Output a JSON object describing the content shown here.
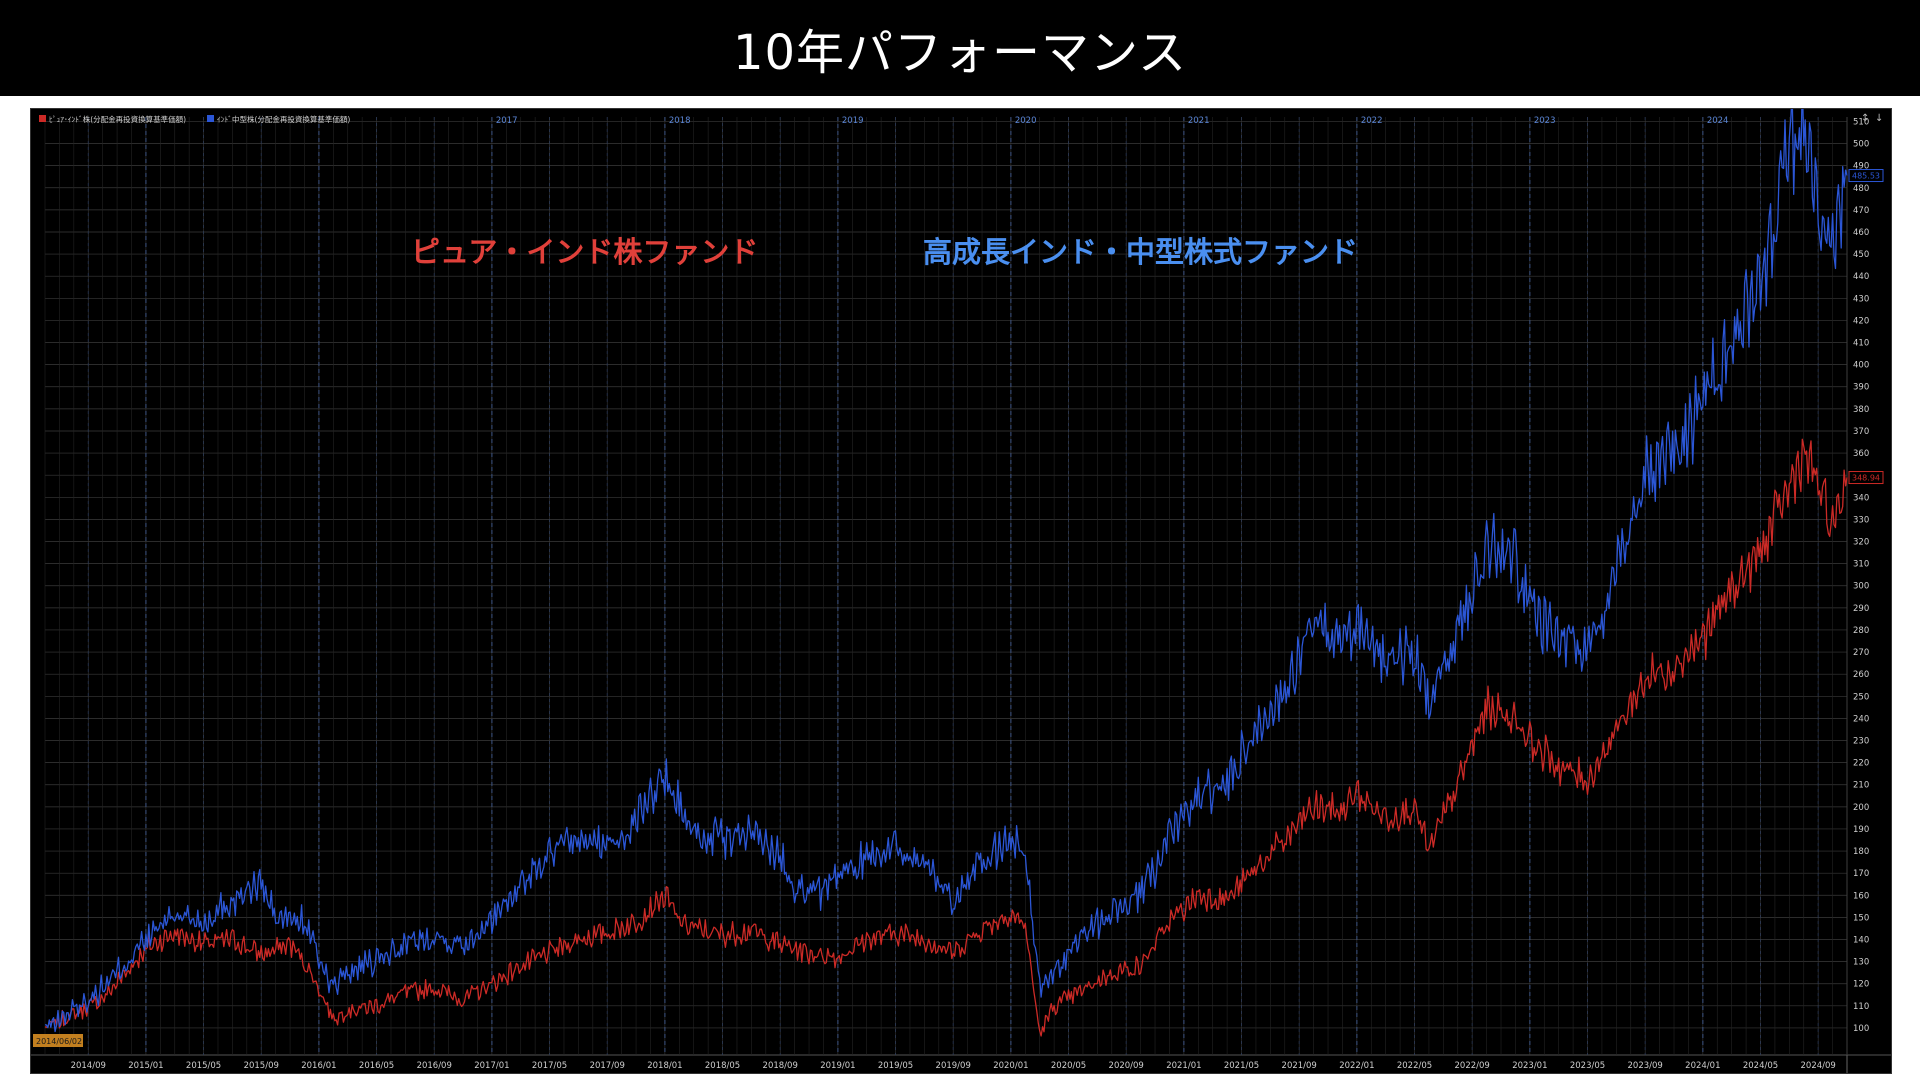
{
  "page": {
    "title": "10年パフォーマンス"
  },
  "colors": {
    "red": "#cc2a26",
    "blue": "#2b56d6",
    "red_label": "#e0403a",
    "blue_label": "#4a8ff0",
    "grid": "#3a3a3a",
    "vline": "#3a4f7a"
  },
  "legend": [
    {
      "label": "ﾋﾟｭｱ･ｲﾝﾄﾞ株(分配金再投資換算基準価額)",
      "color": "#cc2a26"
    },
    {
      "label": "ｲﾝﾄﾞ中型株(分配金再投資換算基準価額)",
      "color": "#2b56d6"
    }
  ],
  "annotations": {
    "red": "ピュア・インド株ファンド",
    "blue": "高成長インド・中型株式ファンド",
    "start_date": "2014/06/02",
    "red_last": "348.94",
    "blue_last": "485.53"
  },
  "chart_data": {
    "type": "line",
    "title": "10年パフォーマンス",
    "xlabel": "",
    "ylabel": "",
    "xlim": [
      "2014-06",
      "2024-11"
    ],
    "ylim": [
      95,
      512
    ],
    "grid": true,
    "legend_position": "top-left",
    "y_ticks": [
      100,
      110,
      120,
      130,
      140,
      150,
      160,
      170,
      180,
      190,
      200,
      210,
      220,
      230,
      240,
      250,
      260,
      270,
      280,
      290,
      300,
      310,
      320,
      330,
      340,
      350,
      360,
      370,
      380,
      390,
      400,
      410,
      420,
      430,
      440,
      450,
      460,
      470,
      480,
      490,
      500,
      510
    ],
    "x_tick_labels": [
      "2014/09",
      "2015/01",
      "2015/05",
      "2015/09",
      "2016/01",
      "2016/05",
      "2016/09",
      "2017/01",
      "2017/05",
      "2017/09",
      "2018/01",
      "2018/05",
      "2018/09",
      "2019/01",
      "2019/05",
      "2019/09",
      "2020/01",
      "2020/05",
      "2020/09",
      "2021/01",
      "2021/05",
      "2021/09",
      "2022/01",
      "2022/05",
      "2022/09",
      "2023/01",
      "2023/05",
      "2023/09",
      "2024/01",
      "2024/05",
      "2024/09"
    ],
    "year_labels": [
      "2017",
      "2018",
      "2019",
      "2020",
      "2021",
      "2022",
      "2023",
      "2024"
    ],
    "series": [
      {
        "name": "ﾋﾟｭｱ･ｲﾝﾄﾞ株(分配金再投資換算基準価額)",
        "color": "#cc2a26",
        "points": [
          [
            "2014-06",
            100
          ],
          [
            "2014-08",
            106
          ],
          [
            "2014-10",
            113
          ],
          [
            "2014-12",
            128
          ],
          [
            "2015-01",
            136
          ],
          [
            "2015-03",
            143
          ],
          [
            "2015-05",
            138
          ],
          [
            "2015-07",
            140
          ],
          [
            "2015-09",
            133
          ],
          [
            "2015-11",
            138
          ],
          [
            "2015-12",
            130
          ],
          [
            "2016-01",
            118
          ],
          [
            "2016-02",
            104
          ],
          [
            "2016-03",
            108
          ],
          [
            "2016-05",
            110
          ],
          [
            "2016-07",
            116
          ],
          [
            "2016-09",
            118
          ],
          [
            "2016-11",
            113
          ],
          [
            "2017-01",
            120
          ],
          [
            "2017-03",
            128
          ],
          [
            "2017-05",
            134
          ],
          [
            "2017-07",
            140
          ],
          [
            "2017-09",
            143
          ],
          [
            "2017-11",
            148
          ],
          [
            "2018-01",
            160
          ],
          [
            "2018-02",
            148
          ],
          [
            "2018-03",
            145
          ],
          [
            "2018-05",
            142
          ],
          [
            "2018-07",
            144
          ],
          [
            "2018-09",
            138
          ],
          [
            "2018-11",
            134
          ],
          [
            "2019-01",
            132
          ],
          [
            "2019-03",
            140
          ],
          [
            "2019-05",
            143
          ],
          [
            "2019-07",
            140
          ],
          [
            "2019-09",
            134
          ],
          [
            "2019-11",
            145
          ],
          [
            "2020-01",
            152
          ],
          [
            "2020-02",
            146
          ],
          [
            "2020-03",
            97
          ],
          [
            "2020-04",
            110
          ],
          [
            "2020-06",
            117
          ],
          [
            "2020-08",
            125
          ],
          [
            "2020-10",
            128
          ],
          [
            "2020-12",
            148
          ],
          [
            "2021-02",
            160
          ],
          [
            "2021-04",
            158
          ],
          [
            "2021-06",
            172
          ],
          [
            "2021-08",
            185
          ],
          [
            "2021-10",
            200
          ],
          [
            "2021-12",
            198
          ],
          [
            "2022-01",
            206
          ],
          [
            "2022-03",
            195
          ],
          [
            "2022-05",
            200
          ],
          [
            "2022-06",
            180
          ],
          [
            "2022-08",
            210
          ],
          [
            "2022-10",
            245
          ],
          [
            "2022-12",
            240
          ],
          [
            "2023-01",
            230
          ],
          [
            "2023-03",
            218
          ],
          [
            "2023-05",
            212
          ],
          [
            "2023-07",
            235
          ],
          [
            "2023-09",
            258
          ],
          [
            "2023-11",
            264
          ],
          [
            "2024-01",
            276
          ],
          [
            "2024-03",
            298
          ],
          [
            "2024-05",
            315
          ],
          [
            "2024-07",
            345
          ],
          [
            "2024-08",
            360
          ],
          [
            "2024-09",
            345
          ],
          [
            "2024-10",
            325
          ],
          [
            "2024-11",
            348.94
          ]
        ]
      },
      {
        "name": "ｲﾝﾄﾞ中型株(分配金再投資換算基準価額)",
        "color": "#2b56d6",
        "points": [
          [
            "2014-06",
            100
          ],
          [
            "2014-08",
            108
          ],
          [
            "2014-10",
            118
          ],
          [
            "2014-12",
            132
          ],
          [
            "2015-01",
            140
          ],
          [
            "2015-03",
            152
          ],
          [
            "2015-05",
            148
          ],
          [
            "2015-07",
            158
          ],
          [
            "2015-09",
            165
          ],
          [
            "2015-10",
            150
          ],
          [
            "2015-12",
            148
          ],
          [
            "2016-01",
            132
          ],
          [
            "2016-02",
            118
          ],
          [
            "2016-03",
            125
          ],
          [
            "2016-05",
            130
          ],
          [
            "2016-07",
            138
          ],
          [
            "2016-09",
            142
          ],
          [
            "2016-11",
            138
          ],
          [
            "2017-01",
            150
          ],
          [
            "2017-03",
            165
          ],
          [
            "2017-05",
            178
          ],
          [
            "2017-07",
            185
          ],
          [
            "2017-09",
            182
          ],
          [
            "2017-11",
            195
          ],
          [
            "2018-01",
            215
          ],
          [
            "2018-02",
            200
          ],
          [
            "2018-03",
            188
          ],
          [
            "2018-05",
            185
          ],
          [
            "2018-07",
            188
          ],
          [
            "2018-09",
            178
          ],
          [
            "2018-10",
            165
          ],
          [
            "2018-12",
            160
          ],
          [
            "2019-01",
            168
          ],
          [
            "2019-03",
            178
          ],
          [
            "2019-05",
            182
          ],
          [
            "2019-07",
            175
          ],
          [
            "2019-09",
            158
          ],
          [
            "2019-11",
            175
          ],
          [
            "2020-01",
            185
          ],
          [
            "2020-02",
            180
          ],
          [
            "2020-03",
            118
          ],
          [
            "2020-04",
            125
          ],
          [
            "2020-06",
            142
          ],
          [
            "2020-08",
            152
          ],
          [
            "2020-10",
            160
          ],
          [
            "2020-12",
            185
          ],
          [
            "2021-02",
            205
          ],
          [
            "2021-04",
            210
          ],
          [
            "2021-06",
            235
          ],
          [
            "2021-08",
            252
          ],
          [
            "2021-10",
            280
          ],
          [
            "2021-12",
            275
          ],
          [
            "2022-01",
            285
          ],
          [
            "2022-03",
            265
          ],
          [
            "2022-05",
            270
          ],
          [
            "2022-06",
            245
          ],
          [
            "2022-08",
            280
          ],
          [
            "2022-10",
            320
          ],
          [
            "2022-12",
            312
          ],
          [
            "2023-01",
            290
          ],
          [
            "2023-03",
            278
          ],
          [
            "2023-05",
            270
          ],
          [
            "2023-07",
            310
          ],
          [
            "2023-09",
            350
          ],
          [
            "2023-11",
            358
          ],
          [
            "2024-01",
            385
          ],
          [
            "2024-03",
            410
          ],
          [
            "2024-05",
            440
          ],
          [
            "2024-07",
            495
          ],
          [
            "2024-08",
            510
          ],
          [
            "2024-09",
            470
          ],
          [
            "2024-10",
            445
          ],
          [
            "2024-11",
            485.53
          ]
        ]
      }
    ]
  }
}
